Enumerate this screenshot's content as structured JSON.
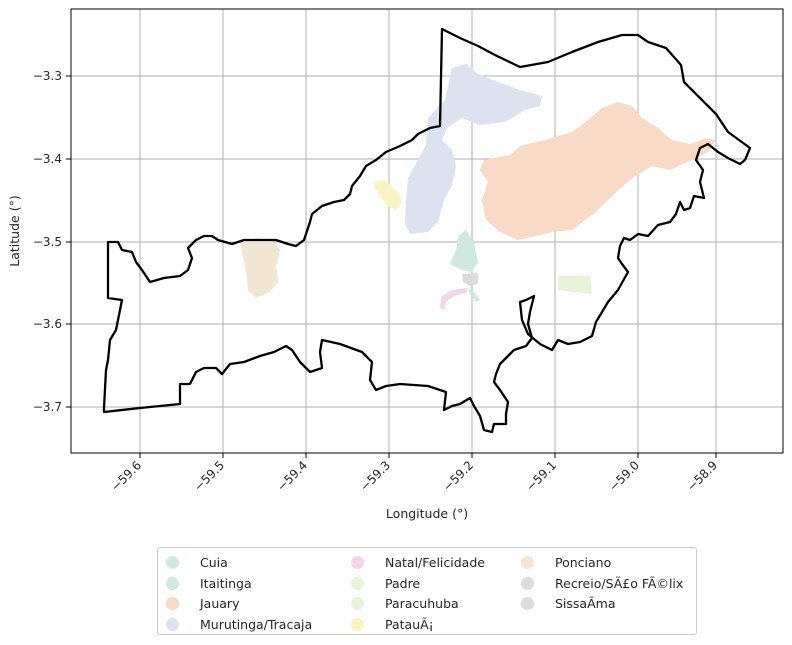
{
  "map": {
    "xlabel": "Longitude (°)",
    "ylabel": "Latitude (°)",
    "x_ticks": [
      "−59.6",
      "−59.5",
      "−59.4",
      "−59.3",
      "−59.2",
      "−59.1",
      "−59.0",
      "−58.9"
    ],
    "y_ticks": [
      "−3.3",
      "−3.4",
      "−3.5",
      "−3.6",
      "−3.7"
    ],
    "grid": true
  },
  "legend": {
    "placement": "bottom-center",
    "items": [
      {
        "label": "Cuia",
        "color": "#cfe9df"
      },
      {
        "label": "Itaitinga",
        "color": "#cfe9df"
      },
      {
        "label": "Jauary",
        "color": "#f8dac6"
      },
      {
        "label": "Murutinga/Tracaja",
        "color": "#dde2f1"
      },
      {
        "label": "Natal/Felicidade",
        "color": "#f2d6ea"
      },
      {
        "label": "Padre",
        "color": "#e8f4d9"
      },
      {
        "label": "Paracuhuba",
        "color": "#e8f4d9"
      },
      {
        "label": "PatauÃ¡",
        "color": "#fbf3c2"
      },
      {
        "label": "Ponciano",
        "color": "#f3e5d4"
      },
      {
        "label": "Recreio/SÃ£o FÃ©lix",
        "color": "#dcdcdc"
      },
      {
        "label": "SissaÃ­ma",
        "color": "#dcdcdc"
      }
    ]
  }
}
